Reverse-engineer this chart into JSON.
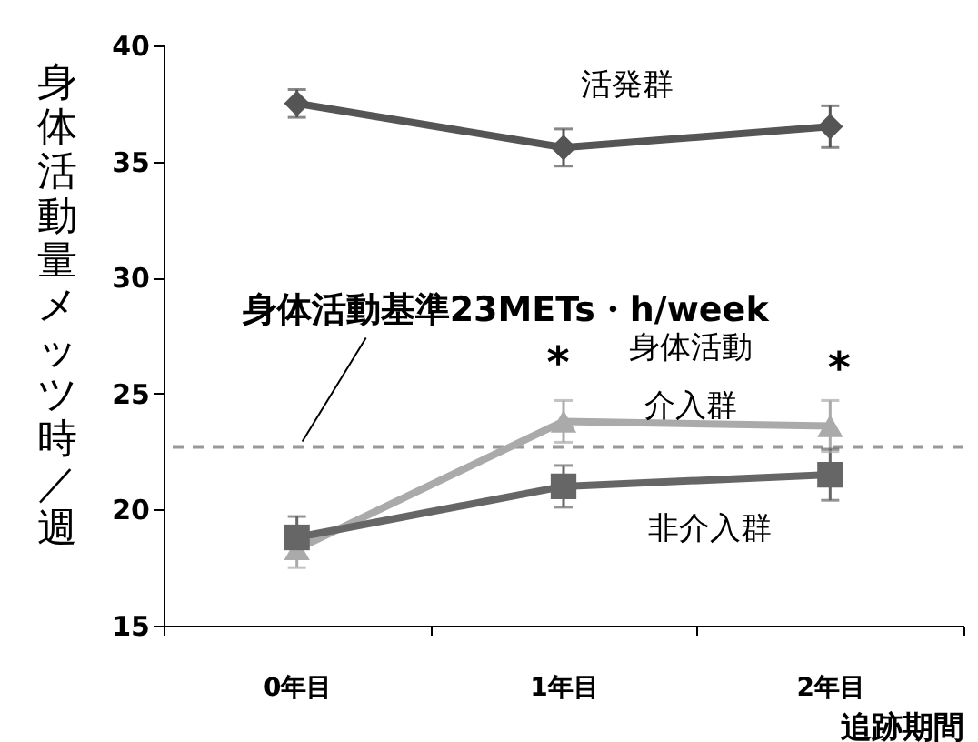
{
  "chart_data": {
    "type": "line",
    "ylabel": "身体活動量メッツ時／週",
    "xlabel": "追跡期間",
    "categories": [
      "0年目",
      "1年目",
      "2年目"
    ],
    "ylim": [
      15,
      40
    ],
    "yticks": [
      15,
      20,
      25,
      30,
      35,
      40
    ],
    "grid": false,
    "line_style": "solid",
    "series": [
      {
        "name": "活発群",
        "color": "#555555",
        "marker": "diamond",
        "values": [
          37.5,
          35.6,
          36.5
        ],
        "errors": [
          0.6,
          0.8,
          0.9
        ]
      },
      {
        "name": "身体活動介入群",
        "color": "#aaaaaa",
        "marker": "triangle",
        "values": [
          18.3,
          23.8,
          23.6
        ],
        "errors": [
          0.8,
          0.9,
          1.1
        ]
      },
      {
        "name": "非介入群",
        "color": "#666666",
        "marker": "square",
        "values": [
          18.8,
          21.0,
          21.5
        ],
        "errors": [
          0.9,
          0.9,
          1.1
        ]
      }
    ],
    "ref_lines": [
      {
        "axis": "y",
        "value": 22.7,
        "label": "身体活動基準23METs・h/week",
        "color": "#999999",
        "line_style": "dashed"
      }
    ],
    "annotations": [
      {
        "text": "*",
        "x": "1年目",
        "y": 23.8
      },
      {
        "text": "*",
        "x": "2年目",
        "y": 23.6
      }
    ]
  }
}
